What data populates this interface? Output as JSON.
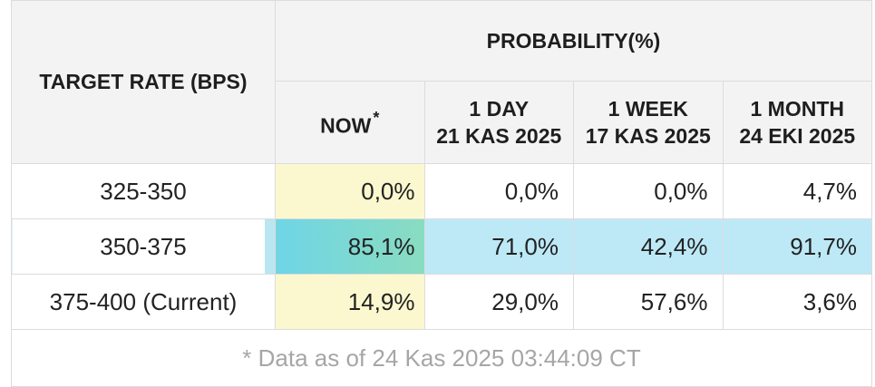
{
  "table": {
    "header": {
      "target_rate": "TARGET RATE (BPS)",
      "probability": "PROBABILITY(%)",
      "now": "NOW",
      "now_mark": "*",
      "columns": [
        {
          "line1": "1 DAY",
          "line2": "21 KAS 2025"
        },
        {
          "line1": "1 WEEK",
          "line2": "17 KAS 2025"
        },
        {
          "line1": "1 MONTH",
          "line2": "24 EKI 2025"
        }
      ]
    },
    "rows": [
      {
        "rate": "325-350",
        "now": "0,0%",
        "day": "0,0%",
        "week": "0,0%",
        "month": "4,7%"
      },
      {
        "rate": "350-375",
        "now": "85,1%",
        "day": "71,0%",
        "week": "42,4%",
        "month": "91,7%"
      },
      {
        "rate": "375-400 (Current)",
        "now": "14,9%",
        "day": "29,0%",
        "week": "57,6%",
        "month": "3,6%"
      }
    ],
    "footer": "* Data as of 24 Kas 2025 03:44:09 CT"
  },
  "colors": {
    "header_bg": "#f3f3f3",
    "now_column_bg": "#fbf8cf",
    "highlight_row_bg": "#bde9f7",
    "footer_text": "#a6a6a6"
  }
}
